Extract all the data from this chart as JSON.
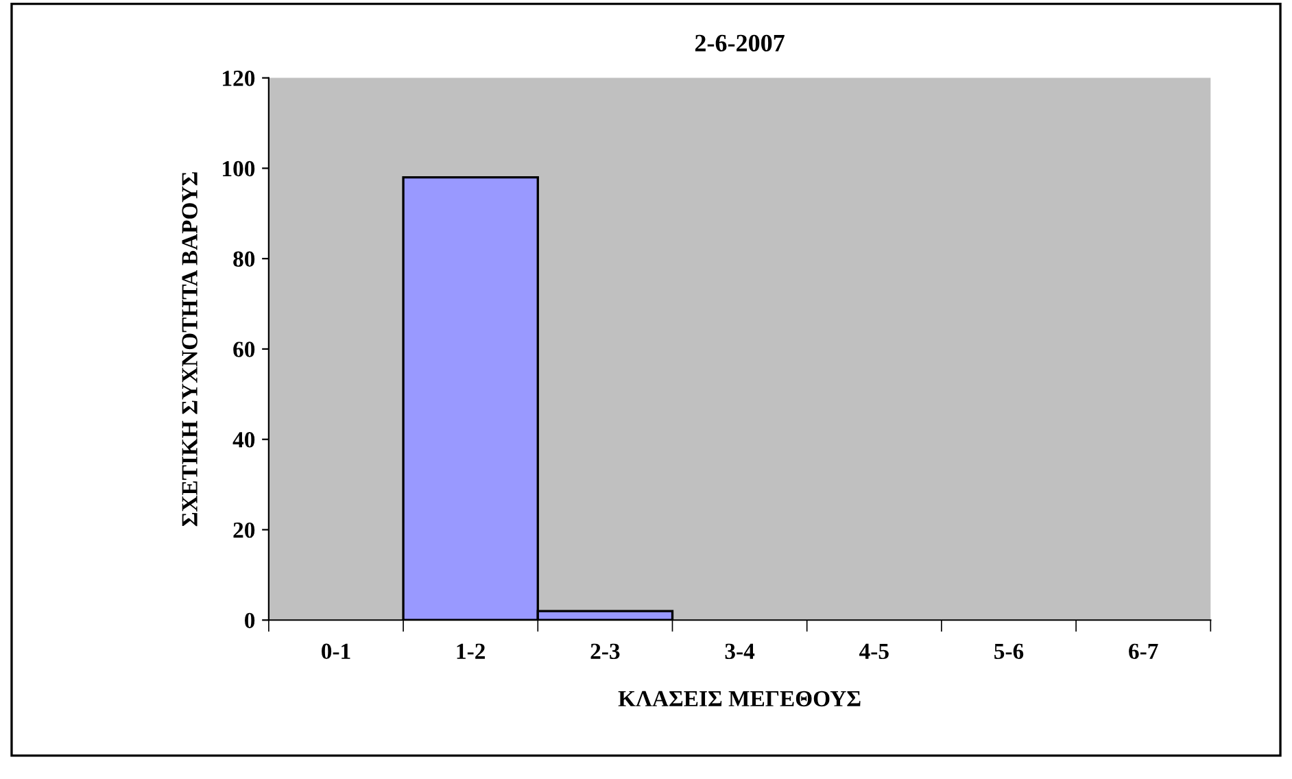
{
  "chart_data": {
    "type": "bar",
    "title": "2-6-2007",
    "xlabel": "ΚΛΑΣΕΙΣ ΜΕΓΕΘΟΥΣ",
    "ylabel": "ΣΧΕΤΙΚΗ ΣΥΧΝΟΤΗΤΑ ΒΑΡΟΥΣ",
    "categories": [
      "0-1",
      "1-2",
      "2-3",
      "3-4",
      "4-5",
      "5-6",
      "6-7"
    ],
    "values": [
      0,
      98,
      2,
      0,
      0,
      0,
      0
    ],
    "color": "#9999ff",
    "ylim": [
      0,
      120
    ],
    "yticks": [
      0,
      20,
      40,
      60,
      80,
      100,
      120
    ],
    "grid": false,
    "legend": false
  }
}
